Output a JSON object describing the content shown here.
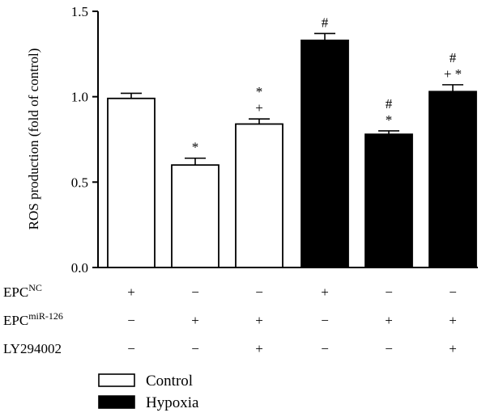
{
  "chart_data": {
    "type": "bar",
    "title": "",
    "xlabel": "",
    "ylabel": "ROS production (fold of control)",
    "ylim": [
      0,
      1.5
    ],
    "yticks": [
      "0.0",
      "0.5",
      "1.0",
      "1.5"
    ],
    "grid": false,
    "legend_position": "bottom-left",
    "series": [
      {
        "name": "Control",
        "color": "#ffffff"
      },
      {
        "name": "Hypoxia",
        "color": "#000000"
      }
    ],
    "bars": [
      {
        "group": "Control",
        "value": 0.99,
        "error": 0.03,
        "marks": []
      },
      {
        "group": "Control",
        "value": 0.6,
        "error": 0.04,
        "marks": [
          "*"
        ]
      },
      {
        "group": "Control",
        "value": 0.84,
        "error": 0.03,
        "marks": [
          "+",
          "*"
        ]
      },
      {
        "group": "Hypoxia",
        "value": 1.33,
        "error": 0.04,
        "marks": [
          "#"
        ]
      },
      {
        "group": "Hypoxia",
        "value": 0.78,
        "error": 0.02,
        "marks": [
          "*",
          "#"
        ]
      },
      {
        "group": "Hypoxia",
        "value": 1.03,
        "error": 0.04,
        "marks": [
          "+ *",
          "#"
        ]
      }
    ],
    "conditions": [
      {
        "label": "EPC",
        "superscript": "NC",
        "values": [
          "+",
          "−",
          "−",
          "+",
          "−",
          "−"
        ]
      },
      {
        "label": "EPC",
        "superscript": "miR-126",
        "values": [
          "−",
          "+",
          "+",
          "−",
          "+",
          "+"
        ]
      },
      {
        "label": "LY294002",
        "superscript": "",
        "values": [
          "−",
          "−",
          "+",
          "−",
          "−",
          "+"
        ]
      }
    ]
  }
}
